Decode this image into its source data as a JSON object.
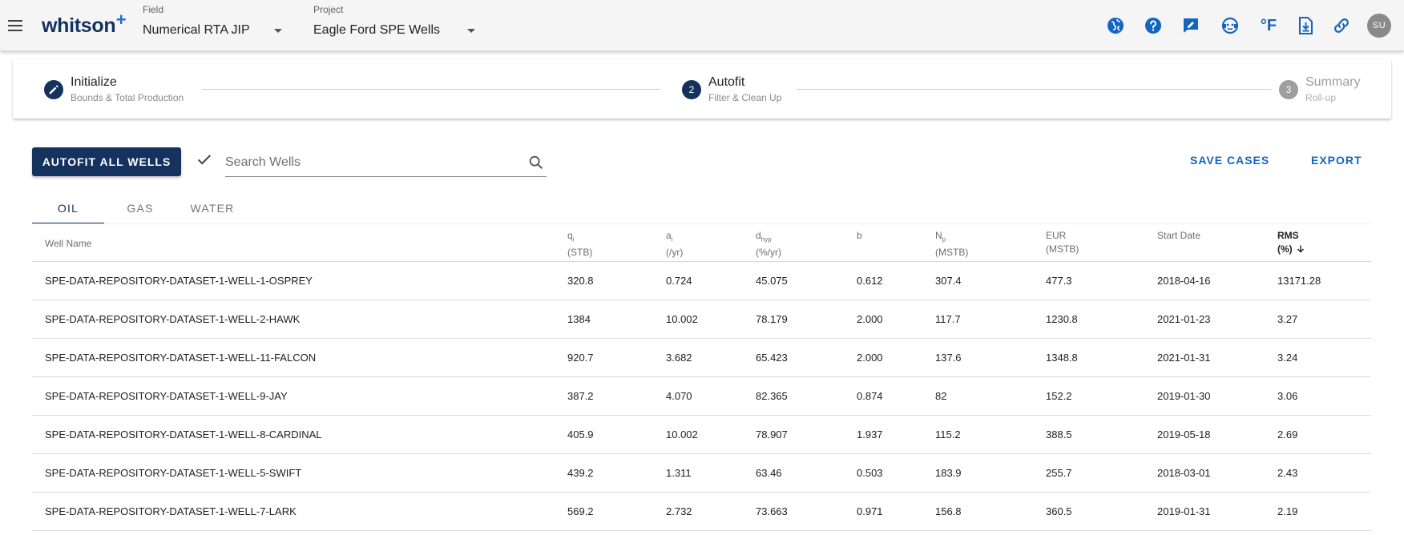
{
  "app": {
    "logo": "whitson",
    "logo_plus": "+",
    "avatar_initials": "SU",
    "accent_color": "#15325f",
    "link_color": "#1565c0"
  },
  "header": {
    "field_label": "Field",
    "field_value": "Numerical RTA JIP",
    "project_label": "Project",
    "project_value": "Eagle Ford SPE Wells",
    "icons": [
      "globe-icon",
      "help-icon",
      "feedback-icon",
      "support-chat-icon",
      "fahrenheit-unit-icon",
      "download-file-icon",
      "link-icon"
    ],
    "unit_symbol": "°F"
  },
  "stepper": {
    "steps": [
      {
        "title": "Initialize",
        "subtitle": "Bounds & Total Production",
        "state": "edit"
      },
      {
        "title": "Autofit",
        "subtitle": "Filter & Clean Up",
        "number": "2",
        "state": "active"
      },
      {
        "title": "Summary",
        "subtitle": "Roll-up",
        "number": "3",
        "state": "inactive"
      }
    ]
  },
  "toolbar": {
    "autofit_label": "AUTOFIT ALL WELLS",
    "search_placeholder": "Search Wells",
    "save_label": "SAVE CASES",
    "export_label": "EXPORT"
  },
  "tabs": [
    {
      "label": "OIL",
      "active": true
    },
    {
      "label": "GAS",
      "active": false
    },
    {
      "label": "WATER",
      "active": false
    }
  ],
  "table": {
    "headers": {
      "well_name": "Well Name",
      "qi": "q",
      "qi_sub": "i",
      "qi_unit": "(STB)",
      "ai": "a",
      "ai_sub": "i",
      "ai_unit": "(/yr)",
      "dhyp": "d",
      "dhyp_sub": "hyp",
      "dhyp_unit": "(%/yr)",
      "b": "b",
      "np": "N",
      "np_sub": "p",
      "np_unit": "(MSTB)",
      "eur": "EUR",
      "eur_unit": "(MSTB)",
      "start_date": "Start Date",
      "rms": "RMS",
      "rms_unit": "(%)"
    },
    "rows": [
      {
        "well": "SPE-DATA-REPOSITORY-DATASET-1-WELL-1-OSPREY",
        "qi": "320.8",
        "ai": "0.724",
        "dhyp": "45.075",
        "b": "0.612",
        "np": "307.4",
        "eur": "477.3",
        "start": "2018-04-16",
        "rms": "13171.28"
      },
      {
        "well": "SPE-DATA-REPOSITORY-DATASET-1-WELL-2-HAWK",
        "qi": "1384",
        "ai": "10.002",
        "dhyp": "78.179",
        "b": "2.000",
        "np": "117.7",
        "eur": "1230.8",
        "start": "2021-01-23",
        "rms": "3.27"
      },
      {
        "well": "SPE-DATA-REPOSITORY-DATASET-1-WELL-11-FALCON",
        "qi": "920.7",
        "ai": "3.682",
        "dhyp": "65.423",
        "b": "2.000",
        "np": "137.6",
        "eur": "1348.8",
        "start": "2021-01-31",
        "rms": "3.24"
      },
      {
        "well": "SPE-DATA-REPOSITORY-DATASET-1-WELL-9-JAY",
        "qi": "387.2",
        "ai": "4.070",
        "dhyp": "82.365",
        "b": "0.874",
        "np": "82",
        "eur": "152.2",
        "start": "2019-01-30",
        "rms": "3.06"
      },
      {
        "well": "SPE-DATA-REPOSITORY-DATASET-1-WELL-8-CARDINAL",
        "qi": "405.9",
        "ai": "10.002",
        "dhyp": "78.907",
        "b": "1.937",
        "np": "115.2",
        "eur": "388.5",
        "start": "2019-05-18",
        "rms": "2.69"
      },
      {
        "well": "SPE-DATA-REPOSITORY-DATASET-1-WELL-5-SWIFT",
        "qi": "439.2",
        "ai": "1.311",
        "dhyp": "63.46",
        "b": "0.503",
        "np": "183.9",
        "eur": "255.7",
        "start": "2018-03-01",
        "rms": "2.43"
      },
      {
        "well": "SPE-DATA-REPOSITORY-DATASET-1-WELL-7-LARK",
        "qi": "569.2",
        "ai": "2.732",
        "dhyp": "73.663",
        "b": "0.971",
        "np": "156.8",
        "eur": "360.5",
        "start": "2019-01-31",
        "rms": "2.19"
      }
    ]
  }
}
